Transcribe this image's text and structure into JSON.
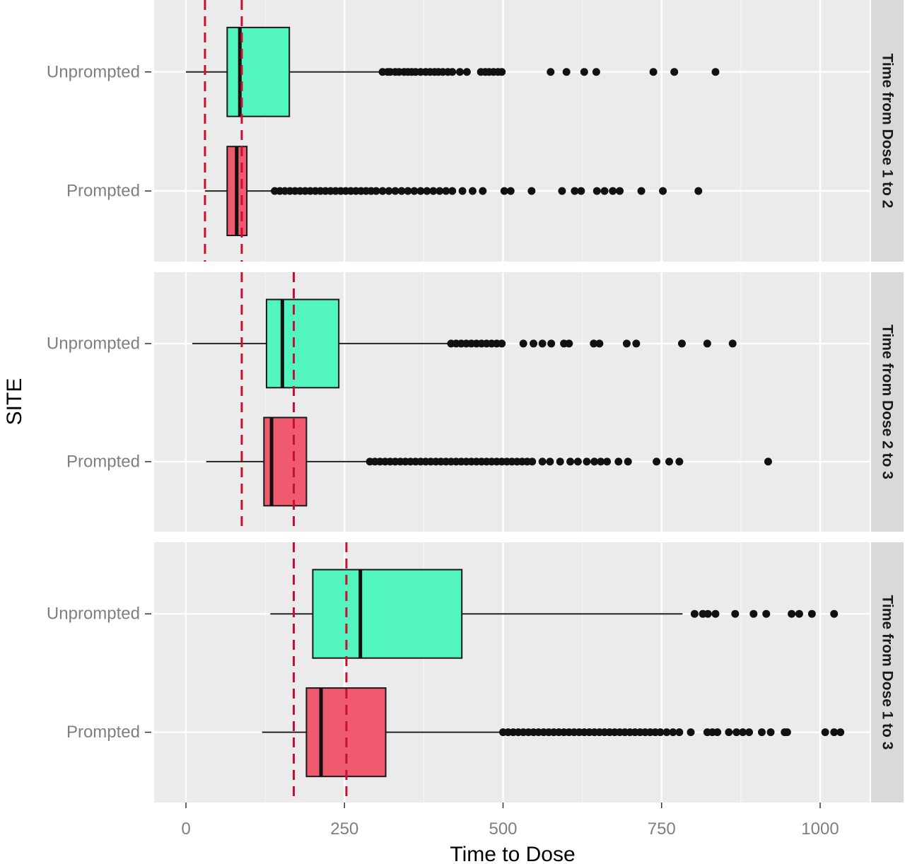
{
  "chart_data": {
    "type": "boxplot",
    "xlabel": "Time to Dose",
    "ylabel": "SITE",
    "xlim": [
      -100,
      1080
    ],
    "x_ticks": [
      0,
      250,
      500,
      750,
      1000
    ],
    "grid": true,
    "legend": "none",
    "colors": {
      "Unprompted": "#52f5bf",
      "Prompted": "#f05a6e",
      "reference_line": "#c8102e"
    },
    "panels": [
      {
        "strip": "Time from Dose 1 to 2",
        "reference_lines": [
          30,
          88
        ],
        "series": [
          {
            "category": "Unprompted",
            "whisker_low": 0,
            "q1": 65,
            "median": 85,
            "q3": 163,
            "whisker_high": 305,
            "outliers": [
              310,
              318,
              322,
              330,
              336,
              344,
              350,
              356,
              362,
              370,
              378,
              385,
              392,
              398,
              405,
              413,
              420,
              432,
              443,
              465,
              472,
              478,
              485,
              492,
              498,
              575,
              600,
              628,
              647,
              737,
              770,
              835
            ]
          },
          {
            "category": "Prompted",
            "whisker_low": 30,
            "q1": 65,
            "median": 80,
            "q3": 96,
            "whisker_high": 135,
            "outliers": [
              140,
              148,
              156,
              164,
              172,
              180,
              188,
              196,
              204,
              212,
              220,
              228,
              236,
              244,
              252,
              260,
              268,
              276,
              284,
              292,
              300,
              310,
              320,
              330,
              340,
              350,
              360,
              370,
              380,
              390,
              400,
              410,
              420,
              436,
              452,
              468,
              502,
              512,
              545,
              593,
              613,
              623,
              648,
              660,
              673,
              684,
              718,
              752,
              808
            ]
          }
        ]
      },
      {
        "strip": "Time from Dose 2 to 3",
        "reference_lines": [
          88,
          170
        ],
        "series": [
          {
            "category": "Unprompted",
            "whisker_low": 10,
            "q1": 127,
            "median": 152,
            "q3": 241,
            "whisker_high": 412,
            "outliers": [
              418,
              426,
              434,
              442,
              450,
              458,
              466,
              474,
              482,
              490,
              498,
              532,
              548,
              562,
              576,
              596,
              604,
              643,
              652,
              695,
              710,
              782,
              822,
              862
            ]
          },
          {
            "category": "Prompted",
            "whisker_low": 32,
            "q1": 123,
            "median": 135,
            "q3": 190,
            "whisker_high": 285,
            "outliers": [
              290,
              298,
              306,
              314,
              322,
              330,
              338,
              346,
              354,
              362,
              370,
              378,
              386,
              394,
              402,
              410,
              418,
              426,
              434,
              442,
              450,
              458,
              466,
              474,
              482,
              490,
              498,
              506,
              514,
              522,
              530,
              538,
              546,
              562,
              574,
              590,
              606,
              618,
              632,
              644,
              654,
              664,
              682,
              697,
              742,
              762,
              778,
              918
            ]
          }
        ]
      },
      {
        "strip": "Time from Dose 1 to 3",
        "reference_lines": [
          170,
          253
        ],
        "series": [
          {
            "category": "Unprompted",
            "whisker_low": 133,
            "q1": 200,
            "median": 275,
            "q3": 435,
            "whisker_high": 783,
            "outliers": [
              802,
              815,
              823,
              835,
              866,
              895,
              915,
              955,
              967,
              987,
              1022
            ]
          },
          {
            "category": "Prompted",
            "whisker_low": 120,
            "q1": 190,
            "median": 213,
            "q3": 315,
            "whisker_high": 495,
            "outliers": [
              500,
              508,
              516,
              524,
              532,
              540,
              548,
              556,
              564,
              572,
              580,
              588,
              596,
              604,
              612,
              620,
              628,
              636,
              644,
              652,
              660,
              668,
              676,
              684,
              692,
              700,
              708,
              716,
              724,
              732,
              740,
              748,
              758,
              768,
              778,
              796,
              822,
              830,
              838,
              856,
              868,
              878,
              888,
              908,
              922,
              944,
              948,
              1008,
              1022,
              1032
            ]
          }
        ]
      }
    ]
  }
}
